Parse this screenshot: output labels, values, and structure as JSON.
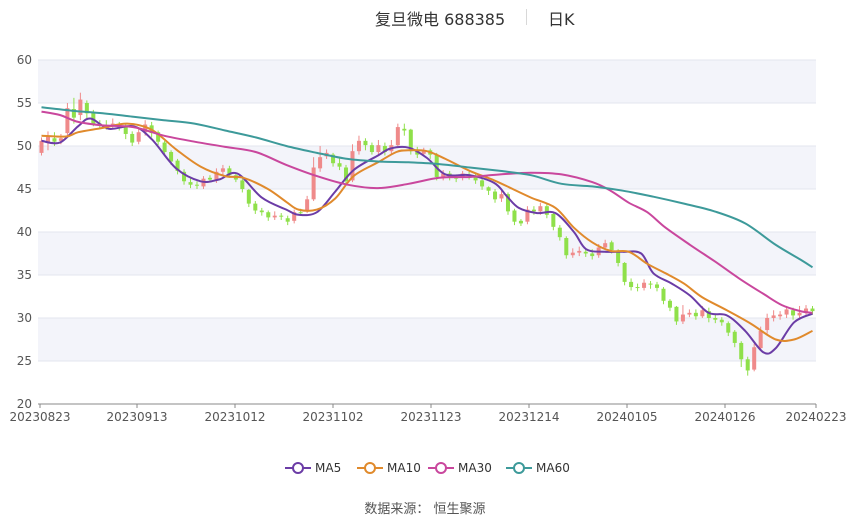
{
  "title": {
    "name": "复旦微电 688385",
    "period": "日K"
  },
  "source": "数据来源：  恒生聚源",
  "colors": {
    "up": "#ef8a8a",
    "down": "#8fe04a",
    "ma5": "#6b3ca6",
    "ma10": "#e08a2c",
    "ma30": "#c9479d",
    "ma60": "#3d9a9a",
    "grid": "#e3e6ef",
    "band": "#f3f4fa",
    "axis": "#555555"
  },
  "legend": [
    {
      "label": "MA5",
      "color": "#6b3ca6"
    },
    {
      "label": "MA10",
      "color": "#e08a2c"
    },
    {
      "label": "MA30",
      "color": "#c9479d"
    },
    {
      "label": "MA60",
      "color": "#3d9a9a"
    }
  ],
  "chart_data": {
    "type": "candlestick",
    "x_ticks": [
      "20230823",
      "20230913",
      "20231012",
      "20231102",
      "20231123",
      "20231214",
      "20240105",
      "20240126",
      "20240223"
    ],
    "y_ticks": [
      20,
      25,
      30,
      35,
      40,
      45,
      50,
      55,
      60
    ],
    "ylim": [
      20,
      60
    ],
    "trading_days": 120,
    "grid": true,
    "legend_position": "bottom",
    "series": [
      {
        "name": "MA5",
        "points": [
          [
            0,
            50.6
          ],
          [
            3,
            50.4
          ],
          [
            6,
            52.3
          ],
          [
            8,
            53.2
          ],
          [
            11,
            52.0
          ],
          [
            15,
            52.3
          ],
          [
            18,
            50.8
          ],
          [
            22,
            47.4
          ],
          [
            26,
            45.9
          ],
          [
            29,
            46.1
          ],
          [
            32,
            46.8
          ],
          [
            36,
            44.0
          ],
          [
            40,
            42.6
          ],
          [
            42,
            42.0
          ],
          [
            45,
            42.3
          ],
          [
            48,
            44.7
          ],
          [
            51,
            47.2
          ],
          [
            55,
            48.9
          ],
          [
            57,
            49.7
          ],
          [
            60,
            49.8
          ],
          [
            63,
            48.6
          ],
          [
            66,
            46.7
          ],
          [
            70,
            46.6
          ],
          [
            74,
            45.7
          ],
          [
            76,
            44.2
          ],
          [
            78,
            42.8
          ],
          [
            81,
            42.2
          ],
          [
            84,
            42.2
          ],
          [
            87,
            40.0
          ],
          [
            89,
            38.0
          ],
          [
            92,
            37.7
          ],
          [
            95,
            37.7
          ],
          [
            98,
            37.5
          ],
          [
            100,
            35.2
          ],
          [
            103,
            34.0
          ],
          [
            106,
            32.6
          ],
          [
            109,
            30.6
          ],
          [
            112,
            30.3
          ],
          [
            115,
            28.5
          ],
          [
            118,
            26.0
          ],
          [
            120,
            26.5
          ],
          [
            123,
            29.5
          ],
          [
            126,
            30.5
          ]
        ]
      },
      {
        "name": "MA10",
        "points": [
          [
            0,
            51.2
          ],
          [
            4,
            51.1
          ],
          [
            6,
            51.6
          ],
          [
            10,
            52.1
          ],
          [
            14,
            52.6
          ],
          [
            18,
            51.9
          ],
          [
            22,
            49.6
          ],
          [
            26,
            47.6
          ],
          [
            30,
            46.5
          ],
          [
            33,
            46.3
          ],
          [
            37,
            45.0
          ],
          [
            40,
            43.5
          ],
          [
            42,
            42.6
          ],
          [
            45,
            42.6
          ],
          [
            48,
            43.9
          ],
          [
            51,
            46.5
          ],
          [
            55,
            48.1
          ],
          [
            58,
            49.3
          ],
          [
            60,
            49.5
          ],
          [
            63,
            49.4
          ],
          [
            66,
            48.5
          ],
          [
            70,
            47.1
          ],
          [
            74,
            46.0
          ],
          [
            77,
            45.0
          ],
          [
            80,
            44.0
          ],
          [
            84,
            42.8
          ],
          [
            87,
            40.5
          ],
          [
            90,
            38.8
          ],
          [
            93,
            37.8
          ],
          [
            96,
            37.7
          ],
          [
            99,
            36.3
          ],
          [
            102,
            35.2
          ],
          [
            105,
            34.0
          ],
          [
            108,
            32.4
          ],
          [
            112,
            30.9
          ],
          [
            116,
            29.3
          ],
          [
            120,
            27.5
          ],
          [
            123,
            27.5
          ],
          [
            126,
            28.5
          ]
        ]
      },
      {
        "name": "MA30",
        "points": [
          [
            0,
            54.0
          ],
          [
            3,
            53.6
          ],
          [
            6,
            52.8
          ],
          [
            10,
            52.4
          ],
          [
            15,
            52.2
          ],
          [
            20,
            51.2
          ],
          [
            25,
            50.5
          ],
          [
            30,
            49.9
          ],
          [
            35,
            49.3
          ],
          [
            40,
            47.8
          ],
          [
            45,
            46.5
          ],
          [
            50,
            45.5
          ],
          [
            55,
            45.1
          ],
          [
            60,
            45.6
          ],
          [
            65,
            46.3
          ],
          [
            70,
            46.4
          ],
          [
            75,
            46.7
          ],
          [
            80,
            46.9
          ],
          [
            85,
            46.7
          ],
          [
            90,
            45.8
          ],
          [
            93,
            44.8
          ],
          [
            96,
            43.4
          ],
          [
            99,
            42.3
          ],
          [
            102,
            40.5
          ],
          [
            106,
            38.5
          ],
          [
            110,
            36.6
          ],
          [
            114,
            34.6
          ],
          [
            118,
            32.8
          ],
          [
            121,
            31.5
          ],
          [
            124,
            30.8
          ],
          [
            126,
            30.6
          ]
        ]
      },
      {
        "name": "MA60",
        "points": [
          [
            0,
            54.5
          ],
          [
            5,
            54.1
          ],
          [
            10,
            53.8
          ],
          [
            15,
            53.4
          ],
          [
            20,
            53.0
          ],
          [
            25,
            52.6
          ],
          [
            30,
            51.8
          ],
          [
            35,
            51.0
          ],
          [
            40,
            50.0
          ],
          [
            45,
            49.2
          ],
          [
            50,
            48.5
          ],
          [
            55,
            48.2
          ],
          [
            60,
            48.1
          ],
          [
            65,
            47.9
          ],
          [
            70,
            47.5
          ],
          [
            75,
            47.1
          ],
          [
            80,
            46.6
          ],
          [
            85,
            45.6
          ],
          [
            90,
            45.3
          ],
          [
            95,
            44.8
          ],
          [
            100,
            44.1
          ],
          [
            105,
            43.3
          ],
          [
            110,
            42.4
          ],
          [
            115,
            41.0
          ],
          [
            120,
            38.5
          ],
          [
            124,
            36.8
          ],
          [
            126,
            35.9
          ]
        ]
      }
    ],
    "candles_note": "open/close/low/high in CNY, one per trading day",
    "candles": [
      [
        49.2,
        50.6,
        48.9,
        51.0
      ],
      [
        50.4,
        51.1,
        49.5,
        51.7
      ],
      [
        50.9,
        50.5,
        50.0,
        51.6
      ],
      [
        50.6,
        50.9,
        50.2,
        51.4
      ],
      [
        51.5,
        54.4,
        51.0,
        55.0
      ],
      [
        54.3,
        53.3,
        52.6,
        55.6
      ],
      [
        53.6,
        55.4,
        53.0,
        56.2
      ],
      [
        55.0,
        53.8,
        53.0,
        55.3
      ],
      [
        53.9,
        52.6,
        52.3,
        54.2
      ],
      [
        52.6,
        52.4,
        52.0,
        53.0
      ],
      [
        52.4,
        52.3,
        51.9,
        53.0
      ],
      [
        52.3,
        52.6,
        52.0,
        53.2
      ],
      [
        52.5,
        52.2,
        51.8,
        52.8
      ],
      [
        52.2,
        51.4,
        50.8,
        52.5
      ],
      [
        51.4,
        50.4,
        50.0,
        51.7
      ],
      [
        50.5,
        51.6,
        50.2,
        52.0
      ],
      [
        51.6,
        52.5,
        51.2,
        53.0
      ],
      [
        52.4,
        51.5,
        51.0,
        52.8
      ],
      [
        51.6,
        50.5,
        50.1,
        51.8
      ],
      [
        50.4,
        49.3,
        48.9,
        50.6
      ],
      [
        49.3,
        48.2,
        47.8,
        49.5
      ],
      [
        48.3,
        47.1,
        46.7,
        48.5
      ],
      [
        47.0,
        45.9,
        45.5,
        47.3
      ],
      [
        45.8,
        45.5,
        45.1,
        46.3
      ],
      [
        45.5,
        45.4,
        45.0,
        45.9
      ],
      [
        45.3,
        46.2,
        45.0,
        46.5
      ],
      [
        46.3,
        46.1,
        45.8,
        46.6
      ],
      [
        46.0,
        47.0,
        45.7,
        47.4
      ],
      [
        47.0,
        47.4,
        46.5,
        47.8
      ],
      [
        47.4,
        46.6,
        46.3,
        47.7
      ],
      [
        46.6,
        46.1,
        45.8,
        46.8
      ],
      [
        46.0,
        45.0,
        44.6,
        46.2
      ],
      [
        44.9,
        43.3,
        42.9,
        45.0
      ],
      [
        43.3,
        42.5,
        42.1,
        43.6
      ],
      [
        42.5,
        42.3,
        41.9,
        42.8
      ],
      [
        42.3,
        41.7,
        41.3,
        42.5
      ],
      [
        41.7,
        41.9,
        41.4,
        42.4
      ],
      [
        41.9,
        41.8,
        41.4,
        42.2
      ],
      [
        41.6,
        41.2,
        40.8,
        41.9
      ],
      [
        41.3,
        42.3,
        41.0,
        42.6
      ],
      [
        42.3,
        42.2,
        41.9,
        42.7
      ],
      [
        42.4,
        43.8,
        42.2,
        44.2
      ],
      [
        43.8,
        47.5,
        43.6,
        48.7
      ],
      [
        47.4,
        48.7,
        47.0,
        50.0
      ],
      [
        48.8,
        49.2,
        48.5,
        49.6
      ],
      [
        49.0,
        48.0,
        47.6,
        49.2
      ],
      [
        48.0,
        47.6,
        47.2,
        48.6
      ],
      [
        47.5,
        45.9,
        45.6,
        47.8
      ],
      [
        46.0,
        49.4,
        45.8,
        50.2
      ],
      [
        49.4,
        50.6,
        49.0,
        51.2
      ],
      [
        50.6,
        50.1,
        49.5,
        50.9
      ],
      [
        50.1,
        49.3,
        49.0,
        50.4
      ],
      [
        49.3,
        50.1,
        48.9,
        50.7
      ],
      [
        50.0,
        49.3,
        48.9,
        50.4
      ],
      [
        49.4,
        50.1,
        49.0,
        50.7
      ],
      [
        50.1,
        52.2,
        49.8,
        52.6
      ],
      [
        52.0,
        51.8,
        51.2,
        52.6
      ],
      [
        51.9,
        49.4,
        49.0,
        52.0
      ],
      [
        49.5,
        49.0,
        48.6,
        49.9
      ],
      [
        49.1,
        49.4,
        48.8,
        49.8
      ],
      [
        49.5,
        49.0,
        48.5,
        49.7
      ],
      [
        49.0,
        46.4,
        46.0,
        49.2
      ],
      [
        46.4,
        46.8,
        46.0,
        47.2
      ],
      [
        46.8,
        46.3,
        46.0,
        47.1
      ],
      [
        46.4,
        46.2,
        45.8,
        46.7
      ],
      [
        46.3,
        46.8,
        46.0,
        47.1
      ],
      [
        46.7,
        46.5,
        46.1,
        47.0
      ],
      [
        46.6,
        46.0,
        45.6,
        46.8
      ],
      [
        46.0,
        45.3,
        44.9,
        46.2
      ],
      [
        45.2,
        44.8,
        44.3,
        45.3
      ],
      [
        44.7,
        43.8,
        43.4,
        45.0
      ],
      [
        43.9,
        44.4,
        43.5,
        44.8
      ],
      [
        44.4,
        42.4,
        42.0,
        44.6
      ],
      [
        42.5,
        41.2,
        40.8,
        42.7
      ],
      [
        41.3,
        41.0,
        40.7,
        41.5
      ],
      [
        41.2,
        42.6,
        40.9,
        43.0
      ],
      [
        42.6,
        42.4,
        42.0,
        43.0
      ],
      [
        42.4,
        43.0,
        42.0,
        43.4
      ],
      [
        43.0,
        42.0,
        41.6,
        43.3
      ],
      [
        42.1,
        40.6,
        40.2,
        42.3
      ],
      [
        40.5,
        39.4,
        39.0,
        40.8
      ],
      [
        39.3,
        37.3,
        36.9,
        39.5
      ],
      [
        37.3,
        37.6,
        37.0,
        38.1
      ],
      [
        37.6,
        37.8,
        37.2,
        38.3
      ],
      [
        37.7,
        37.5,
        37.1,
        38.1
      ],
      [
        37.5,
        37.2,
        36.8,
        38.0
      ],
      [
        37.3,
        38.2,
        37.0,
        38.6
      ],
      [
        38.2,
        38.7,
        37.9,
        39.1
      ],
      [
        38.8,
        37.9,
        37.5,
        39.0
      ],
      [
        37.8,
        36.4,
        36.0,
        38.0
      ],
      [
        36.4,
        34.2,
        33.8,
        36.5
      ],
      [
        34.2,
        33.6,
        33.2,
        34.6
      ],
      [
        33.6,
        33.5,
        33.1,
        34.0
      ],
      [
        33.5,
        34.1,
        33.2,
        34.5
      ],
      [
        34.0,
        33.9,
        33.4,
        34.3
      ],
      [
        33.9,
        33.5,
        33.1,
        34.2
      ],
      [
        33.4,
        32.0,
        31.6,
        33.6
      ],
      [
        32.0,
        31.2,
        30.8,
        32.2
      ],
      [
        31.3,
        29.6,
        29.2,
        31.4
      ],
      [
        29.6,
        30.4,
        29.3,
        31.5
      ],
      [
        30.4,
        30.6,
        30.1,
        31.0
      ],
      [
        30.6,
        30.2,
        29.8,
        31.0
      ],
      [
        30.2,
        30.9,
        30.0,
        31.4
      ],
      [
        30.8,
        30.0,
        29.5,
        31.2
      ],
      [
        30.0,
        29.8,
        29.4,
        30.4
      ],
      [
        29.8,
        29.5,
        29.1,
        30.1
      ],
      [
        29.4,
        28.3,
        27.9,
        29.6
      ],
      [
        28.4,
        27.1,
        26.6,
        28.6
      ],
      [
        27.1,
        25.2,
        24.3,
        27.3
      ],
      [
        25.2,
        23.9,
        23.3,
        25.5
      ],
      [
        24.0,
        26.6,
        23.8,
        27.0
      ],
      [
        26.5,
        28.5,
        26.3,
        29.0
      ],
      [
        28.6,
        30.0,
        28.2,
        30.5
      ],
      [
        30.0,
        30.3,
        29.6,
        30.9
      ],
      [
        30.2,
        30.4,
        29.8,
        30.8
      ],
      [
        30.4,
        31.0,
        30.0,
        31.4
      ],
      [
        30.9,
        30.3,
        29.8,
        31.2
      ],
      [
        30.3,
        30.6,
        29.9,
        31.4
      ],
      [
        30.6,
        31.1,
        30.2,
        31.5
      ],
      [
        31.1,
        30.8,
        30.4,
        31.4
      ]
    ]
  }
}
